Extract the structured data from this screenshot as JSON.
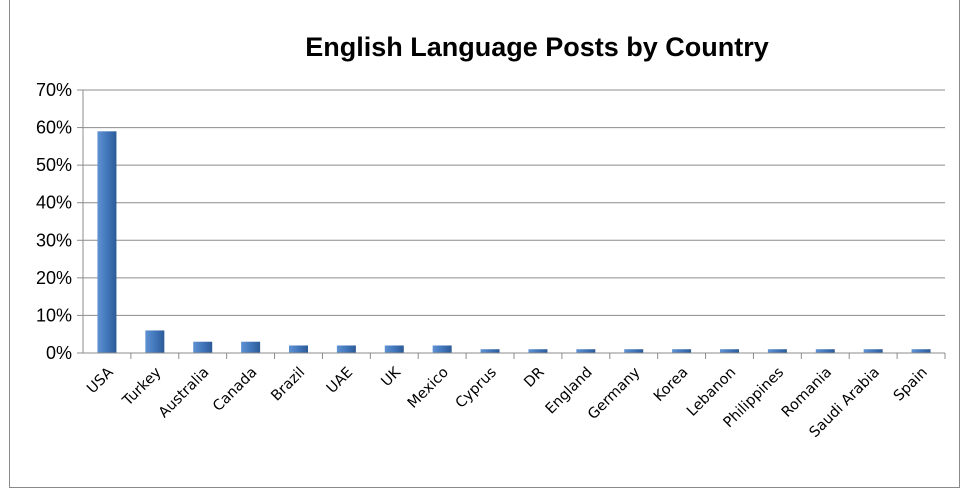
{
  "chart_data": {
    "type": "bar",
    "title": "English Language Posts by Country",
    "xlabel": "",
    "ylabel": "",
    "categories": [
      "USA",
      "Turkey",
      "Australia",
      "Canada",
      "Brazil",
      "UAE",
      "UK",
      "Mexico",
      "Cyprus",
      "DR",
      "England",
      "Germany",
      "Korea",
      "Lebanon",
      "Philippines",
      "Romania",
      "Saudi Arabia",
      "Spain"
    ],
    "values": [
      59,
      6,
      3,
      3,
      2,
      2,
      2,
      2,
      1,
      1,
      1,
      1,
      1,
      1,
      1,
      1,
      1,
      1
    ],
    "ylim": [
      0,
      70
    ],
    "yticks": [
      "0%",
      "10%",
      "20%",
      "30%",
      "40%",
      "50%",
      "60%",
      "70%"
    ],
    "grid": true,
    "legend": "none",
    "bar_color": "#3f74b9"
  }
}
